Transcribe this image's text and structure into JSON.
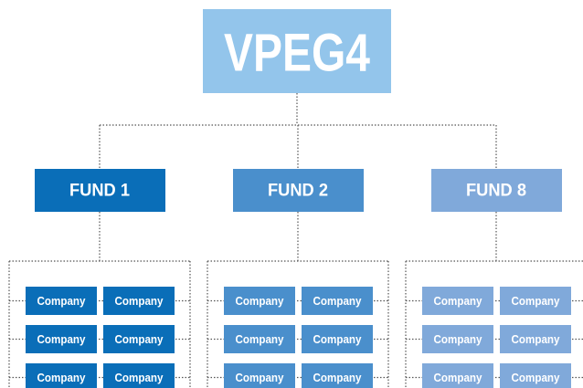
{
  "root": {
    "label": "VPEG4"
  },
  "funds": [
    {
      "label": "FUND 1",
      "companies": [
        "Company",
        "Company",
        "Company",
        "Company",
        "Company",
        "Company"
      ]
    },
    {
      "label": "FUND 2",
      "companies": [
        "Company",
        "Company",
        "Company",
        "Company",
        "Company",
        "Company"
      ]
    },
    {
      "label": "FUND 8",
      "companies": [
        "Company",
        "Company",
        "Company",
        "Company",
        "Company",
        "Company"
      ]
    }
  ]
}
